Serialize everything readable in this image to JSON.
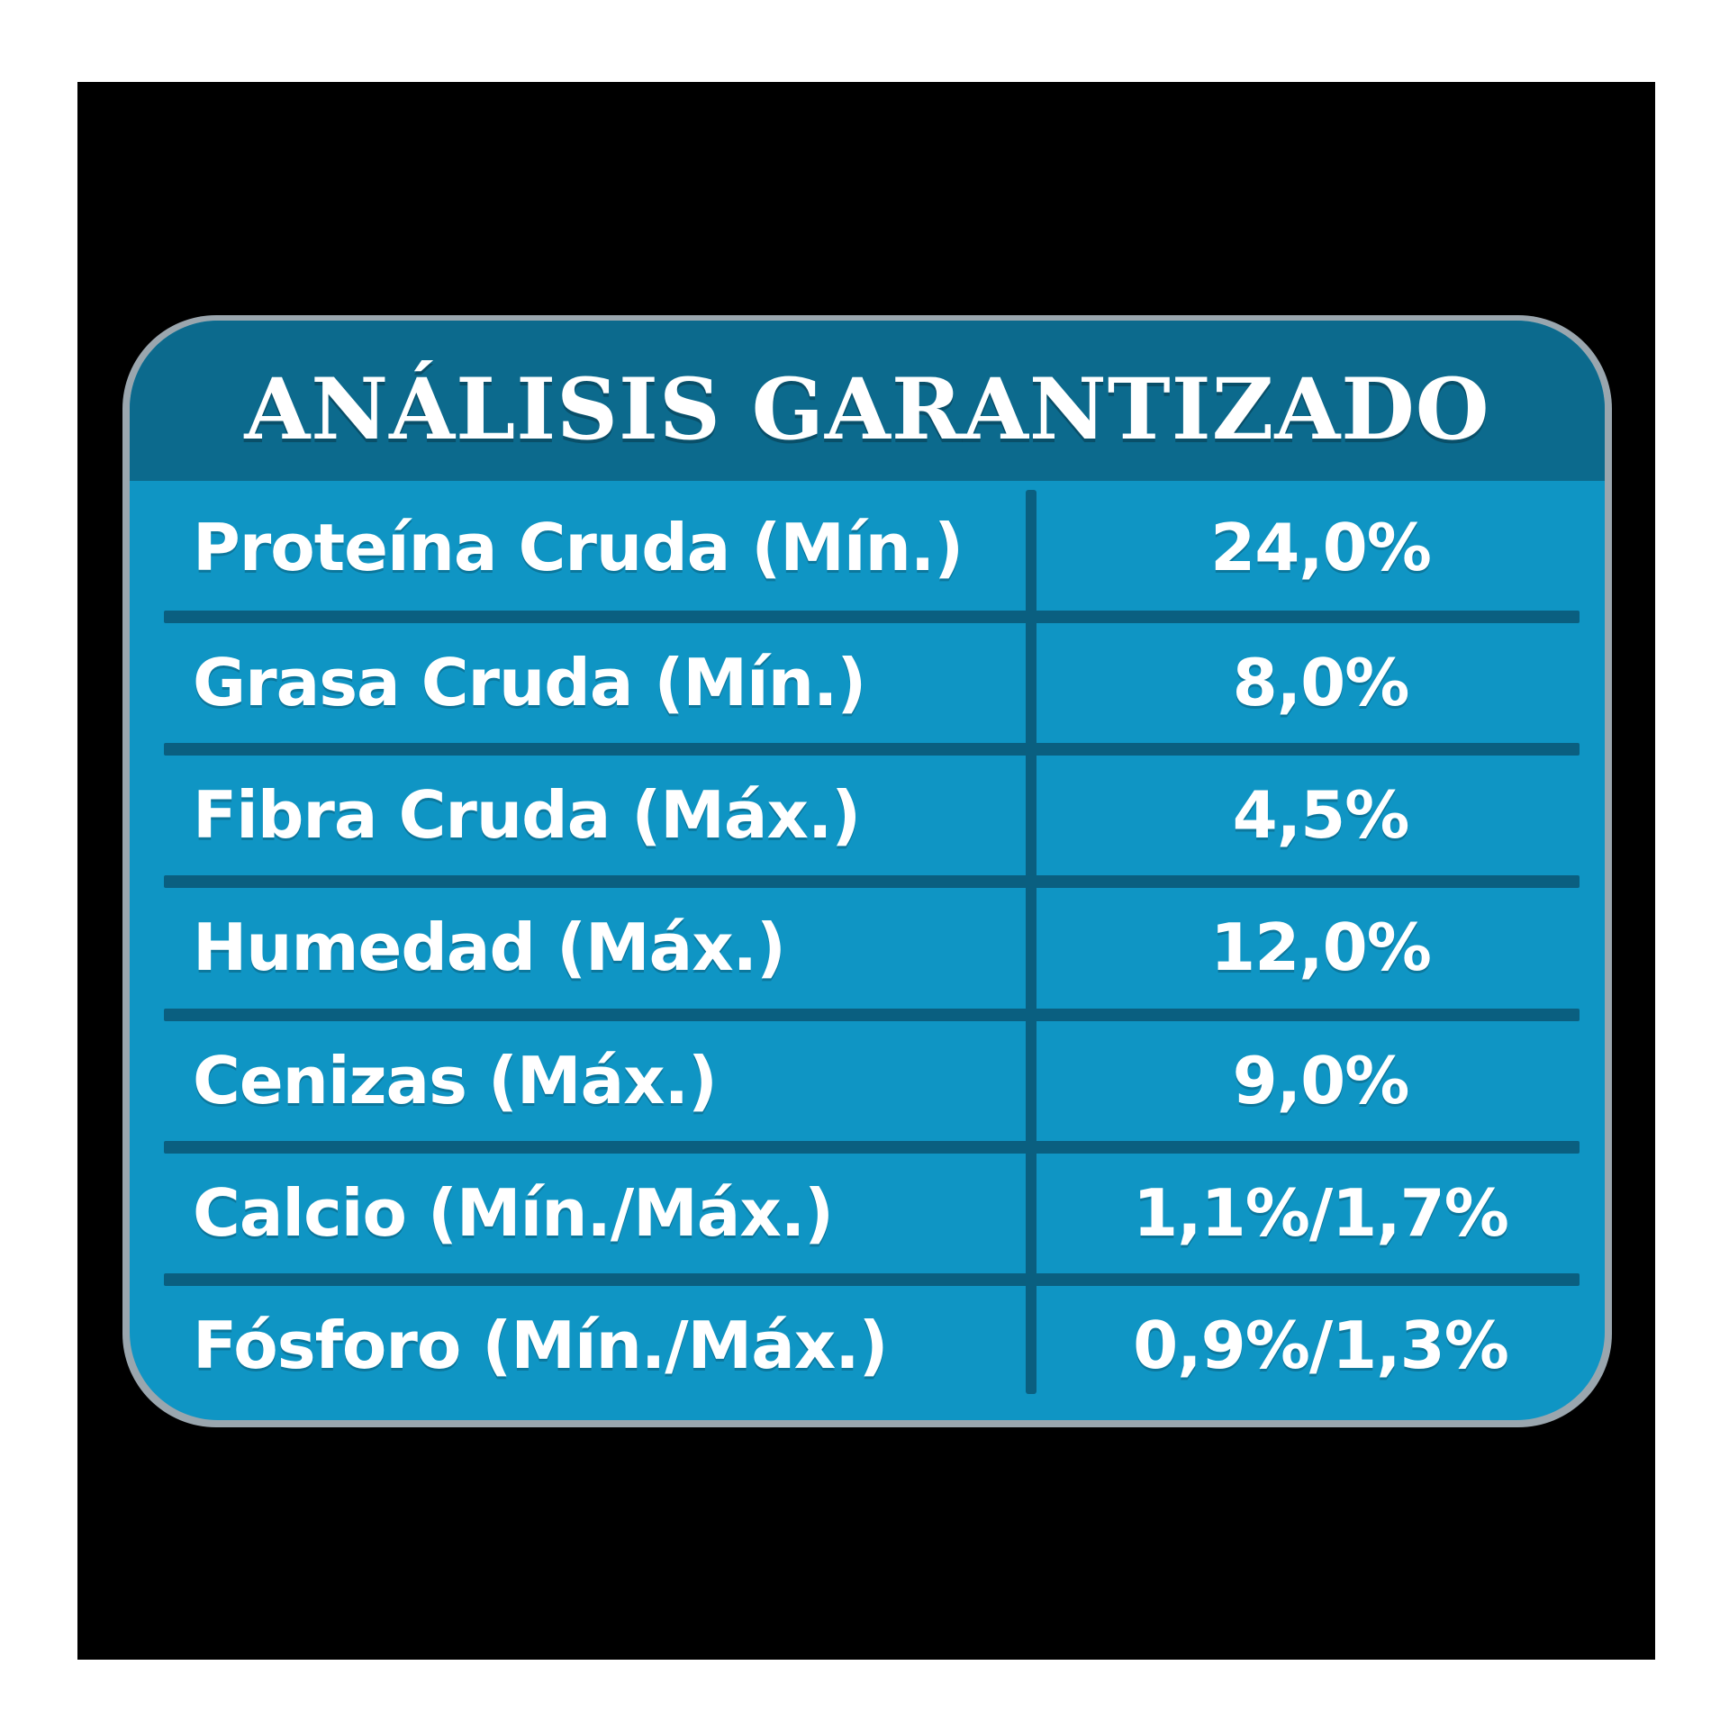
{
  "title": "ANÁLISIS GARANTIZADO",
  "colors": {
    "background": "#ffffff",
    "panel": "#000000",
    "header": "#0c6a8d",
    "body": "#0f95c4",
    "lines": "#0a5f80",
    "text": "#ffffff"
  },
  "rows": [
    {
      "label": "Proteína Cruda (Mín.)",
      "value": "24,0%"
    },
    {
      "label": "Grasa Cruda (Mín.)",
      "value": "8,0%"
    },
    {
      "label": "Fibra Cruda (Máx.)",
      "value": "4,5%"
    },
    {
      "label": "Humedad (Máx.)",
      "value": "12,0%"
    },
    {
      "label": "Cenizas (Máx.)",
      "value": "9,0%"
    },
    {
      "label": "Calcio (Mín./Máx.)",
      "value": "1,1%/1,7%"
    },
    {
      "label": "Fósforo (Mín./Máx.)",
      "value": "0,9%/1,3%"
    }
  ]
}
